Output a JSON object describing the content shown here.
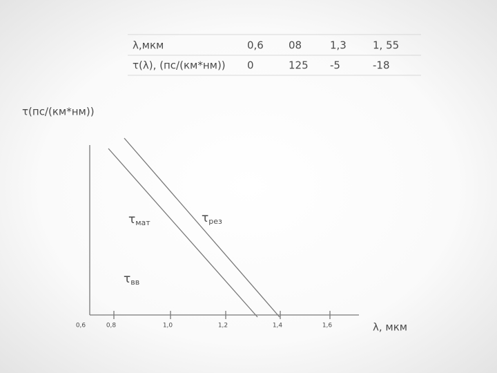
{
  "table": {
    "rows": [
      [
        "λ,мкм",
        "0,6",
        "08",
        "1,3",
        "1, 55"
      ],
      [
        "τ(λ), (пс/(км*нм))",
        "0",
        "125",
        "-5",
        "-18"
      ]
    ]
  },
  "graph": {
    "y_axis_label": "τ(пс/(км*нм))",
    "x_axis_label": "λ, мкм",
    "x_ticks": [
      "0,6",
      "0,8",
      "1,0",
      "1,2",
      "1,4",
      "1,6"
    ],
    "curve_labels": [
      {
        "main": "τ",
        "sub": "мат"
      },
      {
        "main": "τ",
        "sub": "рез"
      },
      {
        "main": "τ",
        "sub": "вв"
      }
    ]
  }
}
